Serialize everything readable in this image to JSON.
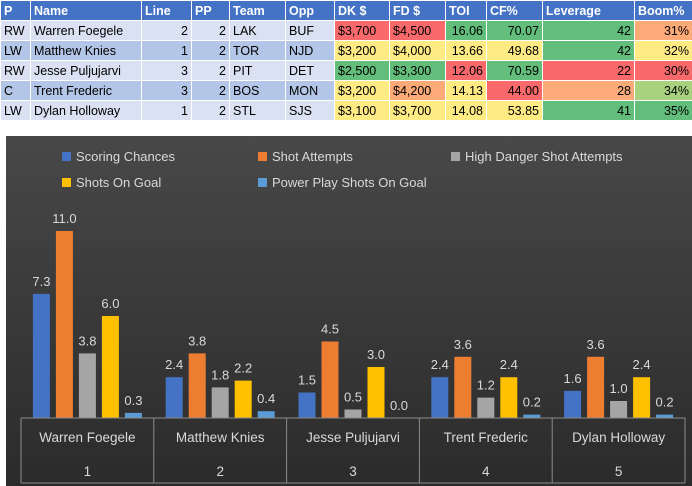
{
  "table": {
    "headers": [
      "P",
      "Name",
      "Line",
      "PP",
      "Team",
      "Opp",
      "DK $",
      "FD $",
      "TOI",
      "CF%",
      "Leverage",
      "Boom%"
    ],
    "rows": [
      [
        "RW",
        "Warren Foegele",
        "2",
        "2",
        "LAK",
        "BUF",
        "$3,700",
        "$4,500",
        "16.06",
        "70.07",
        "42",
        "31%"
      ],
      [
        "LW",
        "Matthew Knies",
        "1",
        "2",
        "TOR",
        "NJD",
        "$3,200",
        "$4,000",
        "13.66",
        "49.68",
        "42",
        "32%"
      ],
      [
        "RW",
        "Jesse Puljujarvi",
        "3",
        "2",
        "PIT",
        "DET",
        "$2,500",
        "$3,300",
        "12.06",
        "70.59",
        "22",
        "30%"
      ],
      [
        "C",
        "Trent Frederic",
        "3",
        "2",
        "BOS",
        "MON",
        "$3,200",
        "$4,200",
        "14.13",
        "44.00",
        "28",
        "34%"
      ],
      [
        "LW",
        "Dylan Holloway",
        "1",
        "2",
        "STL",
        "SJS",
        "$3,100",
        "$3,700",
        "14.08",
        "53.85",
        "41",
        "35%"
      ]
    ],
    "cell_colors": {
      "DK $": [
        "#f8696b",
        "#ffeb84",
        "#63be7b",
        "#ffeb84",
        "#ffeb84"
      ],
      "FD $": [
        "#f8696b",
        "#ffeb84",
        "#63be7b",
        "#fcaa78",
        "#ffeb84"
      ],
      "TOI": [
        "#63be7b",
        "#ffeb84",
        "#f8696b",
        "#ffeb84",
        "#ffeb84"
      ],
      "CF%": [
        "#63be7b",
        "#ffeb84",
        "#63be7b",
        "#f8696b",
        "#ffeb84"
      ],
      "Leverage": [
        "#63be7b",
        "#63be7b",
        "#f8696b",
        "#fcaa78",
        "#63be7b"
      ],
      "Boom%": [
        "#fcaa78",
        "#ffeb84",
        "#f8696b",
        "#a9d27f",
        "#63be7b"
      ]
    },
    "colors": {
      "header_bg": "#4472c4",
      "row_odd": "#d9e1f2",
      "row_even": "#b4c6e7"
    }
  },
  "chart_data": {
    "type": "bar",
    "categories": [
      "Warren Foegele",
      "Matthew Knies",
      "Jesse Puljujarvi",
      "Trent Frederic",
      "Dylan Holloway"
    ],
    "category_numbers": [
      "1",
      "2",
      "3",
      "4",
      "5"
    ],
    "series": [
      {
        "name": "Scoring Chances",
        "color": "#4472c4",
        "values": [
          7.3,
          2.4,
          1.5,
          2.4,
          1.6
        ]
      },
      {
        "name": "Shot Attempts",
        "color": "#ed7d31",
        "values": [
          11.0,
          3.8,
          4.5,
          3.6,
          3.6
        ]
      },
      {
        "name": "High Danger Shot Attempts",
        "color": "#a5a5a5",
        "values": [
          3.8,
          1.8,
          0.5,
          1.2,
          1.0
        ]
      },
      {
        "name": "Shots On Goal",
        "color": "#ffc000",
        "values": [
          6.0,
          2.2,
          3.0,
          2.4,
          2.4
        ]
      },
      {
        "name": "Power Play Shots On Goal",
        "color": "#5b9bd5",
        "values": [
          0.3,
          0.4,
          0.0,
          0.2,
          0.2
        ]
      }
    ],
    "data_labels": true,
    "ylim": [
      0,
      12
    ],
    "legend_position": "top",
    "grid": false,
    "background": "#3a3a3a"
  }
}
